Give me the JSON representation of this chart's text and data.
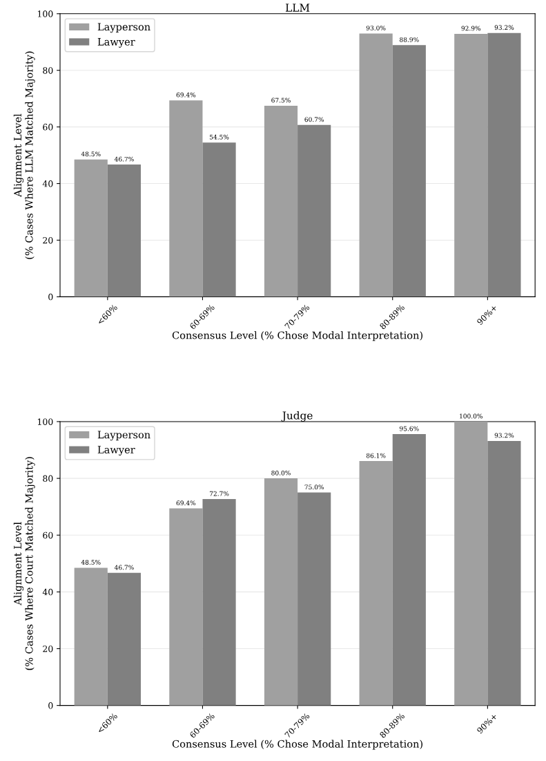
{
  "chart_data": [
    {
      "type": "bar",
      "title": "LLM",
      "xlabel": "Consensus Level (% Chose Modal Interpretation)",
      "ylabel": "Alignment Level\n(% Cases Where LLM Matched Majority)",
      "categories": [
        "<60%",
        "60-69%",
        "70-79%",
        "80-89%",
        "90%+"
      ],
      "ylim": [
        0,
        100
      ],
      "yticks": [
        0,
        20,
        40,
        60,
        80,
        100
      ],
      "grid": "y",
      "legend": "top left",
      "series": [
        {
          "name": "Layperson",
          "color": "#a0a0a0",
          "values": [
            48.5,
            69.4,
            67.5,
            93.0,
            92.9
          ],
          "value_labels": [
            "48.5%",
            "69.4%",
            "67.5%",
            "93.0%",
            "92.9%"
          ]
        },
        {
          "name": "Lawyer",
          "color": "#808080",
          "values": [
            46.7,
            54.5,
            60.7,
            88.9,
            93.2
          ],
          "value_labels": [
            "46.7%",
            "54.5%",
            "60.7%",
            "88.9%",
            "93.2%"
          ]
        }
      ]
    },
    {
      "type": "bar",
      "title": "Judge",
      "xlabel": "Consensus Level (% Chose Modal Interpretation)",
      "ylabel": "Alignment Level\n(% Cases Where Court Matched Majority)",
      "categories": [
        "<60%",
        "60-69%",
        "70-79%",
        "80-89%",
        "90%+"
      ],
      "ylim": [
        0,
        100
      ],
      "yticks": [
        0,
        20,
        40,
        60,
        80,
        100
      ],
      "grid": "y",
      "legend": "top left",
      "series": [
        {
          "name": "Layperson",
          "color": "#a0a0a0",
          "values": [
            48.5,
            69.4,
            80.0,
            86.1,
            100.0
          ],
          "value_labels": [
            "48.5%",
            "69.4%",
            "80.0%",
            "86.1%",
            "100.0%"
          ]
        },
        {
          "name": "Lawyer",
          "color": "#808080",
          "values": [
            46.7,
            72.7,
            75.0,
            95.6,
            93.2
          ],
          "value_labels": [
            "46.7%",
            "72.7%",
            "75.0%",
            "95.6%",
            "93.2%"
          ]
        }
      ]
    }
  ]
}
